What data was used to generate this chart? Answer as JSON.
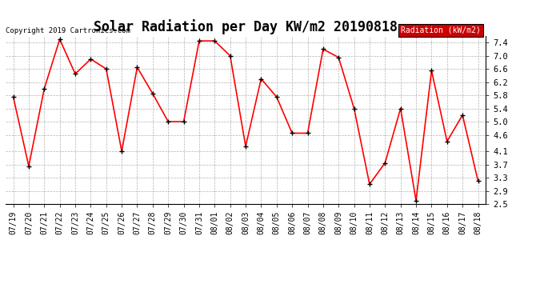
{
  "title": "Solar Radiation per Day KW/m2 20190818",
  "copyright_text": "Copyright 2019 Cartronics.com",
  "legend_label": "Radiation (kW/m2)",
  "dates": [
    "07/19",
    "07/20",
    "07/21",
    "07/22",
    "07/23",
    "07/24",
    "07/25",
    "07/26",
    "07/27",
    "07/28",
    "07/29",
    "07/30",
    "07/31",
    "08/01",
    "08/02",
    "08/03",
    "08/04",
    "08/05",
    "08/06",
    "08/07",
    "08/08",
    "08/09",
    "08/10",
    "08/11",
    "08/12",
    "08/13",
    "08/14",
    "08/15",
    "08/16",
    "08/17",
    "08/18"
  ],
  "values": [
    5.75,
    3.65,
    6.0,
    7.5,
    6.45,
    6.9,
    6.6,
    4.1,
    6.65,
    5.85,
    5.0,
    5.0,
    7.45,
    7.45,
    7.0,
    4.25,
    6.3,
    5.75,
    4.65,
    4.65,
    7.2,
    6.95,
    5.4,
    3.1,
    3.75,
    5.4,
    2.6,
    6.55,
    4.4,
    5.2,
    3.2
  ],
  "line_color": "red",
  "marker": "+",
  "marker_color": "black",
  "marker_size": 5,
  "line_width": 1.2,
  "ylim": [
    2.5,
    7.6
  ],
  "yticks": [
    2.5,
    2.9,
    3.3,
    3.7,
    4.1,
    4.6,
    5.0,
    5.4,
    5.8,
    6.2,
    6.6,
    7.0,
    7.4
  ],
  "bg_color": "#ffffff",
  "grid_color": "#aaaaaa",
  "title_fontsize": 12,
  "legend_bg": "#cc0000",
  "legend_text_color": "#ffffff",
  "copyright_fontsize": 6.5,
  "tick_fontsize": 7,
  "ytick_fontsize": 7.5
}
